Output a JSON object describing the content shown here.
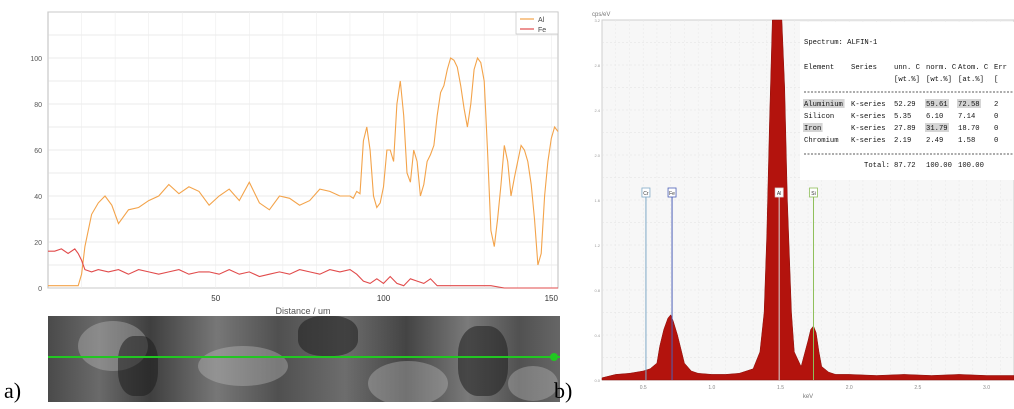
{
  "labels": {
    "panel_a": "a)",
    "panel_b": "b)"
  },
  "colors": {
    "al": "#f3a34a",
    "fe": "#e14b4b",
    "spectrum_fill": "#b3130d",
    "grid": "#d8d8d8"
  },
  "chart_data": [
    {
      "type": "line",
      "xlabel": "Distance / um",
      "ylabel": "",
      "xlim": [
        0,
        152
      ],
      "ylim": [
        0,
        120
      ],
      "xticks": [
        50,
        100,
        150
      ],
      "yticks": [
        0,
        20,
        40,
        60,
        80,
        100
      ],
      "grid": true,
      "legend": "top-right",
      "series": [
        {
          "name": "Al",
          "color": "#f3a34a",
          "x": [
            0,
            3,
            5,
            8,
            9,
            10,
            11,
            13,
            15,
            17,
            19,
            21,
            24,
            27,
            30,
            33,
            36,
            39,
            42,
            45,
            48,
            51,
            54,
            57,
            60,
            63,
            66,
            69,
            72,
            75,
            78,
            81,
            84,
            87,
            90,
            91,
            92,
            93,
            94,
            95,
            96,
            97,
            98,
            99,
            100,
            101,
            102,
            103,
            104,
            105,
            106,
            107,
            108,
            109,
            110,
            111,
            112,
            113,
            114,
            115,
            116,
            117,
            118,
            119,
            120,
            121,
            122,
            123,
            124,
            125,
            126,
            127,
            128,
            129,
            130,
            131,
            132,
            133,
            134,
            135,
            136,
            137,
            138,
            139,
            140,
            141,
            142,
            143,
            144,
            145,
            146,
            147,
            148,
            149,
            150,
            151,
            152
          ],
          "values": [
            1,
            1,
            1,
            1,
            1,
            6,
            18,
            32,
            37,
            40,
            36,
            28,
            34,
            35,
            38,
            40,
            45,
            41,
            44,
            42,
            36,
            40,
            43,
            38,
            46,
            37,
            34,
            40,
            39,
            36,
            38,
            43,
            42,
            40,
            40,
            39,
            42,
            41,
            64,
            70,
            60,
            40,
            35,
            37,
            44,
            60,
            60,
            55,
            80,
            90,
            75,
            50,
            46,
            60,
            55,
            40,
            45,
            55,
            58,
            62,
            75,
            85,
            88,
            95,
            100,
            99,
            96,
            88,
            78,
            70,
            80,
            95,
            100,
            98,
            90,
            60,
            25,
            18,
            30,
            45,
            62,
            55,
            40,
            48,
            55,
            62,
            60,
            55,
            45,
            30,
            10,
            15,
            40,
            55,
            65,
            70,
            68
          ]
        },
        {
          "name": "Fe",
          "color": "#e14b4b",
          "x": [
            0,
            2,
            4,
            6,
            8,
            9,
            10,
            11,
            13,
            15,
            18,
            21,
            24,
            27,
            30,
            33,
            36,
            39,
            42,
            45,
            48,
            51,
            54,
            57,
            60,
            63,
            66,
            69,
            72,
            75,
            78,
            81,
            84,
            87,
            90,
            92,
            94,
            96,
            98,
            100,
            102,
            104,
            106,
            108,
            110,
            112,
            114,
            116,
            118,
            120,
            124,
            128,
            132,
            136,
            140,
            144,
            148,
            152
          ],
          "values": [
            16,
            16,
            17,
            15,
            17,
            15,
            12,
            8,
            7,
            8,
            7,
            8,
            6,
            8,
            7,
            6,
            7,
            8,
            6,
            7,
            7,
            6,
            8,
            6,
            7,
            5,
            6,
            7,
            6,
            8,
            7,
            6,
            8,
            7,
            8,
            6,
            3,
            2,
            4,
            2,
            5,
            2,
            1,
            4,
            3,
            2,
            4,
            1,
            1,
            1,
            1,
            1,
            1,
            0,
            0,
            0,
            0,
            0
          ]
        }
      ]
    },
    {
      "type": "area",
      "title": "Spectrum: ALFIN-1",
      "xlabel": "keV",
      "ylabel": "cps/eV",
      "xlim": [
        0.2,
        3.2
      ],
      "ylim": [
        0,
        3.2
      ],
      "xticks": [
        "0.5",
        "1.0",
        "1.5",
        "2.0",
        "2.5",
        "3.0"
      ],
      "grid": true,
      "series": [
        {
          "name": "Spectrum",
          "x": [
            0.2,
            0.3,
            0.4,
            0.5,
            0.55,
            0.6,
            0.62,
            0.65,
            0.68,
            0.7,
            0.72,
            0.75,
            0.78,
            0.8,
            0.85,
            0.9,
            1.0,
            1.1,
            1.2,
            1.3,
            1.35,
            1.38,
            1.4,
            1.42,
            1.44,
            1.46,
            1.48,
            1.49,
            1.5,
            1.51,
            1.53,
            1.55,
            1.58,
            1.6,
            1.65,
            1.7,
            1.72,
            1.74,
            1.76,
            1.78,
            1.8,
            1.85,
            1.9,
            2.0,
            2.2,
            2.4,
            2.6,
            2.8,
            3.0,
            3.2
          ],
          "values": [
            0.02,
            0.05,
            0.06,
            0.08,
            0.1,
            0.15,
            0.3,
            0.45,
            0.55,
            0.58,
            0.52,
            0.4,
            0.25,
            0.15,
            0.08,
            0.06,
            0.05,
            0.05,
            0.06,
            0.1,
            0.25,
            0.6,
            1.3,
            2.3,
            3.2,
            3.2,
            3.2,
            3.2,
            3.2,
            3.2,
            2.6,
            1.6,
            0.6,
            0.25,
            0.12,
            0.35,
            0.45,
            0.48,
            0.42,
            0.25,
            0.12,
            0.07,
            0.05,
            0.05,
            0.04,
            0.05,
            0.04,
            0.05,
            0.04,
            0.04
          ]
        }
      ],
      "markers": [
        {
          "label": "Cr",
          "x": 0.52,
          "color": "#7fa9c7"
        },
        {
          "label": "Fe",
          "x": 0.71,
          "color": "#4b5fb6"
        },
        {
          "label": "Al",
          "x": 1.49,
          "color": "#d9d9d9"
        },
        {
          "label": "Si",
          "x": 1.74,
          "color": "#8fbf5a"
        }
      ],
      "table": {
        "headers": [
          "Element",
          "Series",
          "unn. C",
          "norm. C",
          "Atom. C",
          "Err"
        ],
        "units": [
          "",
          "",
          "[wt.%]",
          "[wt.%]",
          "[at.%]",
          "["
        ],
        "rows": [
          [
            "Aluminium",
            "K-series",
            "52.29",
            "59.61",
            "72.58",
            "2"
          ],
          [
            "Silicon",
            "K-series",
            "5.35",
            "6.10",
            "7.14",
            "0"
          ],
          [
            "Iron",
            "K-series",
            "27.89",
            "31.79",
            "18.70",
            "0"
          ],
          [
            "Chromium",
            "K-series",
            "2.19",
            "2.49",
            "1.58",
            "0"
          ]
        ],
        "total": [
          "Total:",
          "87.72",
          "100.00",
          "100.00"
        ]
      }
    }
  ]
}
